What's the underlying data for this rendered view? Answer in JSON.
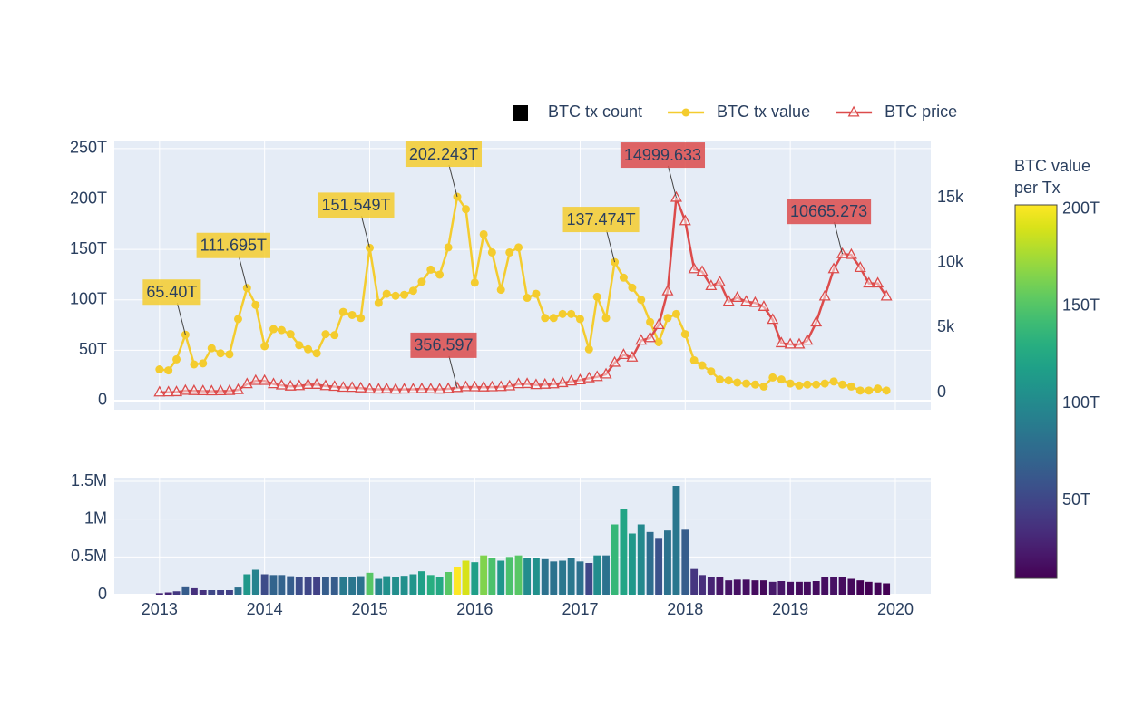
{
  "chart_data": [
    {
      "type": "line",
      "legend": "top-right",
      "grid": true,
      "x": [
        "2013-01",
        "2013-02",
        "2013-03",
        "2013-04",
        "2013-05",
        "2013-06",
        "2013-07",
        "2013-08",
        "2013-09",
        "2013-10",
        "2013-11",
        "2013-12",
        "2014-01",
        "2014-02",
        "2014-03",
        "2014-04",
        "2014-05",
        "2014-06",
        "2014-07",
        "2014-08",
        "2014-09",
        "2014-10",
        "2014-11",
        "2014-12",
        "2015-01",
        "2015-02",
        "2015-03",
        "2015-04",
        "2015-05",
        "2015-06",
        "2015-07",
        "2015-08",
        "2015-09",
        "2015-10",
        "2015-11",
        "2015-12",
        "2016-01",
        "2016-02",
        "2016-03",
        "2016-04",
        "2016-05",
        "2016-06",
        "2016-07",
        "2016-08",
        "2016-09",
        "2016-10",
        "2016-11",
        "2016-12",
        "2017-01",
        "2017-02",
        "2017-03",
        "2017-04",
        "2017-05",
        "2017-06",
        "2017-07",
        "2017-08",
        "2017-09",
        "2017-10",
        "2017-11",
        "2017-12",
        "2018-01",
        "2018-02",
        "2018-03",
        "2018-04",
        "2018-05",
        "2018-06",
        "2018-07",
        "2018-08",
        "2018-09",
        "2018-10",
        "2018-11",
        "2018-12",
        "2019-01",
        "2019-02",
        "2019-03",
        "2019-04",
        "2019-05",
        "2019-06",
        "2019-07",
        "2019-08",
        "2019-09",
        "2019-10",
        "2019-11",
        "2019-12"
      ],
      "xlim": [
        "2012-07-28",
        "2020-05-03"
      ],
      "xticks": [
        "2013",
        "2014",
        "2015",
        "2016",
        "2017",
        "2018",
        "2019",
        "2020"
      ],
      "ylim": [
        -9,
        258
      ],
      "yticks": [
        0,
        {
          "value": 50,
          "label": "50T"
        },
        {
          "value": 100,
          "label": "100T"
        },
        {
          "value": 150,
          "label": "150T"
        },
        {
          "value": 200,
          "label": "200T"
        },
        {
          "value": 250,
          "label": "250T"
        }
      ],
      "y2lim": [
        -1325,
        19400
      ],
      "y2ticks": [
        0,
        {
          "value": 5000,
          "label": "5k"
        },
        {
          "value": 10000,
          "label": "10k"
        },
        {
          "value": 15000,
          "label": "15k"
        }
      ],
      "series": [
        {
          "name": "BTC tx value",
          "color": "#f4cc2e",
          "marker": "circle",
          "values": [
            31,
            30,
            41,
            65.4,
            36,
            37,
            52,
            47,
            46,
            81,
            111.695,
            95,
            54,
            71,
            70,
            66,
            55,
            51,
            47,
            66,
            65,
            88,
            85,
            82,
            151.549,
            97,
            106,
            104,
            105,
            109,
            118,
            130,
            125,
            152,
            202.243,
            190,
            117,
            165,
            147,
            110,
            147,
            152,
            102,
            106,
            82,
            82,
            86,
            86,
            81,
            51,
            103,
            82,
            137.474,
            122,
            112,
            100,
            78,
            58,
            82,
            86,
            66,
            40,
            35,
            29,
            21,
            20,
            18,
            17,
            16,
            14,
            23,
            21,
            17,
            15,
            16,
            16,
            17,
            19,
            16,
            14,
            10,
            10,
            12,
            10
          ],
          "value_labels": [
            null,
            null,
            null,
            "65.40T",
            null,
            null,
            null,
            null,
            null,
            null,
            "111.695T",
            null,
            null,
            null,
            null,
            null,
            null,
            null,
            null,
            null,
            null,
            null,
            null,
            null,
            "151.549T",
            null,
            null,
            null,
            null,
            null,
            null,
            null,
            null,
            null,
            "202.243T",
            null,
            null,
            null,
            null,
            null,
            null,
            null,
            null,
            null,
            null,
            null,
            null,
            null,
            null,
            null,
            null,
            null,
            "137.474T",
            null,
            null,
            null,
            null,
            null,
            null,
            null,
            null,
            null,
            null,
            null,
            null,
            null,
            null,
            null,
            null,
            null,
            null,
            null,
            null,
            null,
            null,
            null,
            null,
            null,
            null,
            null,
            null,
            null,
            null,
            null
          ]
        },
        {
          "name": "BTC price",
          "color": "#dc4b4b",
          "marker": "triangle-up-open",
          "axis": "y2",
          "values": [
            13,
            20,
            33,
            140,
            120,
            108,
            97,
            106,
            125,
            200,
            650,
            900,
            900,
            650,
            550,
            470,
            500,
            600,
            600,
            500,
            450,
            380,
            370,
            330,
            260,
            240,
            260,
            230,
            240,
            245,
            270,
            250,
            235,
            280,
            356.597,
            420,
            410,
            400,
            410,
            430,
            480,
            650,
            660,
            580,
            610,
            640,
            730,
            860,
            950,
            1100,
            1200,
            1400,
            2300,
            2900,
            2700,
            4000,
            4200,
            5200,
            7800,
            14999.633,
            13200,
            9500,
            9300,
            8200,
            8500,
            7000,
            7300,
            7000,
            6900,
            6600,
            5600,
            3800,
            3700,
            3700,
            4000,
            5400,
            7400,
            9500,
            10665.273,
            10600,
            9600,
            8400,
            8400,
            7400
          ],
          "value_labels": [
            null,
            null,
            null,
            null,
            null,
            null,
            null,
            null,
            null,
            null,
            null,
            null,
            null,
            null,
            null,
            null,
            null,
            null,
            null,
            null,
            null,
            null,
            null,
            null,
            null,
            null,
            null,
            null,
            null,
            null,
            null,
            null,
            null,
            null,
            "356.597",
            null,
            null,
            null,
            null,
            null,
            null,
            null,
            null,
            null,
            null,
            null,
            null,
            null,
            null,
            null,
            null,
            null,
            null,
            null,
            null,
            null,
            null,
            null,
            null,
            "14999.633",
            null,
            null,
            null,
            null,
            null,
            null,
            null,
            null,
            null,
            null,
            null,
            null,
            null,
            null,
            null,
            null,
            null,
            null,
            "10665.273",
            null,
            null,
            null,
            null,
            null
          ]
        }
      ]
    },
    {
      "type": "bar",
      "grid": true,
      "x": [
        "2013-01",
        "2013-02",
        "2013-03",
        "2013-04",
        "2013-05",
        "2013-06",
        "2013-07",
        "2013-08",
        "2013-09",
        "2013-10",
        "2013-11",
        "2013-12",
        "2014-01",
        "2014-02",
        "2014-03",
        "2014-04",
        "2014-05",
        "2014-06",
        "2014-07",
        "2014-08",
        "2014-09",
        "2014-10",
        "2014-11",
        "2014-12",
        "2015-01",
        "2015-02",
        "2015-03",
        "2015-04",
        "2015-05",
        "2015-06",
        "2015-07",
        "2015-08",
        "2015-09",
        "2015-10",
        "2015-11",
        "2015-12",
        "2016-01",
        "2016-02",
        "2016-03",
        "2016-04",
        "2016-05",
        "2016-06",
        "2016-07",
        "2016-08",
        "2016-09",
        "2016-10",
        "2016-11",
        "2016-12",
        "2017-01",
        "2017-02",
        "2017-03",
        "2017-04",
        "2017-05",
        "2017-06",
        "2017-07",
        "2017-08",
        "2017-09",
        "2017-10",
        "2017-11",
        "2017-12",
        "2018-01",
        "2018-02",
        "2018-03",
        "2018-04",
        "2018-05",
        "2018-06",
        "2018-07",
        "2018-08",
        "2018-09",
        "2018-10",
        "2018-11",
        "2018-12",
        "2019-01",
        "2019-02",
        "2019-03",
        "2019-04",
        "2019-05",
        "2019-06",
        "2019-07",
        "2019-08",
        "2019-09",
        "2019-10",
        "2019-11",
        "2019-12"
      ],
      "xlim": [
        "2012-07-28",
        "2020-05-03"
      ],
      "xticks": [
        "2013",
        "2014",
        "2015",
        "2016",
        "2017",
        "2018",
        "2019",
        "2020"
      ],
      "ylim": [
        0,
        1548000
      ],
      "yticks": [
        0,
        {
          "value": 500000,
          "label": "0.5M"
        },
        {
          "value": 1000000,
          "label": "1M"
        },
        {
          "value": 1500000,
          "label": "1.5M"
        }
      ],
      "colorscale": "Viridis",
      "colorbar": {
        "title": "BTC value per Tx",
        "ticks": [
          {
            "value": 50,
            "label": "50T"
          },
          {
            "value": 100,
            "label": "100T"
          },
          {
            "value": 150,
            "label": "150T"
          },
          {
            "value": 200,
            "label": "200T"
          }
        ]
      },
      "series": [
        {
          "name": "BTC tx count",
          "color": "#000000",
          "values": [
            20000,
            30000,
            45000,
            110000,
            85000,
            60000,
            60000,
            60000,
            60000,
            95000,
            270000,
            330000,
            270000,
            260000,
            260000,
            245000,
            240000,
            235000,
            235000,
            235000,
            235000,
            230000,
            230000,
            245000,
            290000,
            210000,
            245000,
            240000,
            250000,
            270000,
            310000,
            260000,
            230000,
            300000,
            360000,
            450000,
            430000,
            520000,
            490000,
            450000,
            500000,
            520000,
            480000,
            490000,
            470000,
            440000,
            450000,
            480000,
            440000,
            420000,
            520000,
            520000,
            930000,
            1130000,
            810000,
            930000,
            830000,
            740000,
            850000,
            1440000,
            860000,
            340000,
            260000,
            240000,
            230000,
            190000,
            200000,
            200000,
            190000,
            190000,
            170000,
            180000,
            170000,
            170000,
            170000,
            180000,
            240000,
            240000,
            230000,
            210000,
            190000,
            170000,
            160000,
            150000
          ]
        }
      ]
    }
  ]
}
